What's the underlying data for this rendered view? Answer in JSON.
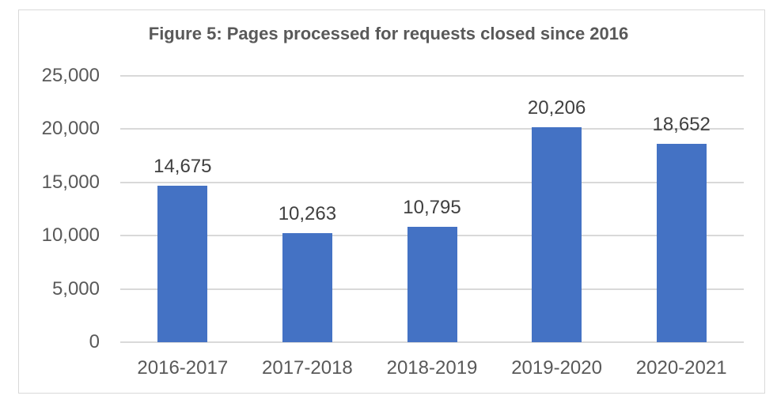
{
  "chart_data": {
    "type": "bar",
    "title": "Figure 5: Pages processed for requests closed since 2016",
    "xlabel": "",
    "ylabel": "",
    "categories": [
      "2016-2017",
      "2017-2018",
      "2018-2019",
      "2019-2020",
      "2020-2021"
    ],
    "values": [
      14675,
      10263,
      10795,
      20206,
      18652
    ],
    "data_labels": [
      "14,675",
      "10,263",
      "10,795",
      "20,206",
      "18,652"
    ],
    "ylim": [
      0,
      25000
    ],
    "yticks": [
      0,
      5000,
      10000,
      15000,
      20000,
      25000
    ],
    "ytick_labels": [
      "0",
      "5,000",
      "10,000",
      "15,000",
      "20,000",
      "25,000"
    ],
    "grid": true,
    "legend": null,
    "colors": {
      "bar": "#4472C4",
      "text": "#595959",
      "grid": "#D9D9D9"
    }
  }
}
